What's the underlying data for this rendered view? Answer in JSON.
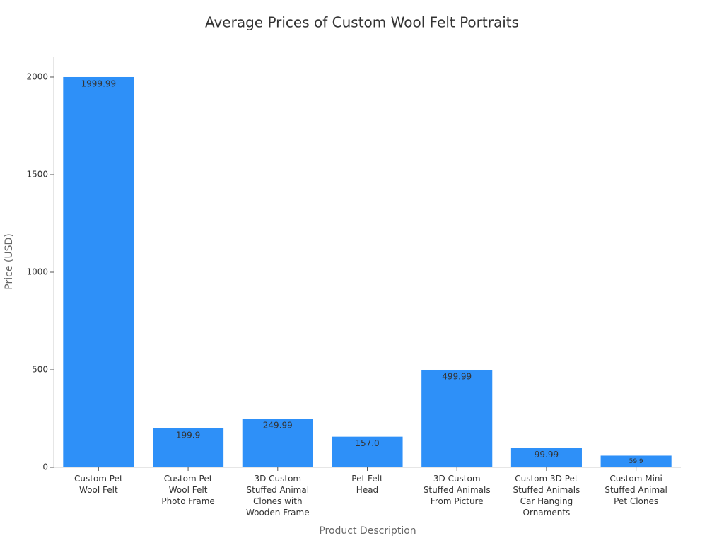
{
  "chart_data": {
    "type": "bar",
    "title": "Average Prices of Custom Wool Felt Portraits",
    "x_label": "Product Description",
    "y_label": "Price (USD)",
    "categories": [
      "Custom Pet\nWool Felt",
      "Custom Pet\nWool Felt\nPhoto Frame",
      "3D Custom\nStuffed Animal\nClones with\nWooden Frame",
      "Pet Felt\nHead",
      "3D Custom\nStuffed Animals\nFrom Picture",
      "Custom 3D Pet\nStuffed Animals\nCar Hanging\nOrnaments",
      "Custom Mini\nStuffed Animal\nPet Clones"
    ],
    "values": [
      1999.99,
      199.9,
      249.99,
      157.0,
      499.99,
      99.99,
      59.9
    ],
    "value_labels": [
      "1999.99",
      "199.9",
      "249.99",
      "157.0",
      "499.99",
      "99.99",
      "59.9"
    ],
    "color": "#2e90f8",
    "ylim": [
      0,
      2105
    ],
    "yticks": [
      0,
      500,
      1000,
      1500,
      2000
    ]
  }
}
